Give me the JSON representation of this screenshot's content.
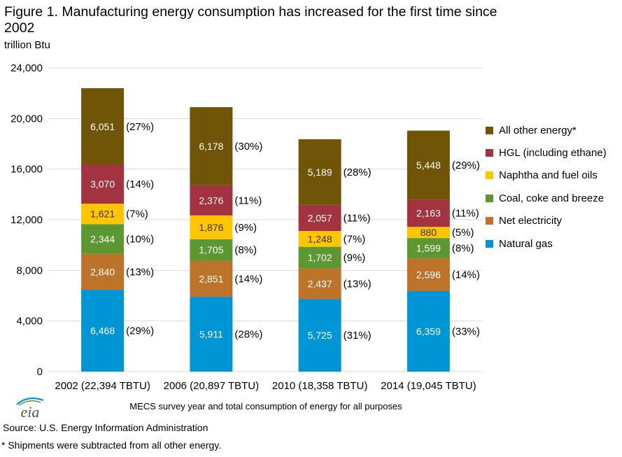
{
  "header": {
    "title": "Figure 1. Manufacturing energy consumption has increased for the first time since 2002",
    "unit": "trillion Btu"
  },
  "footer": {
    "source": "Source: U.S. Energy Information Administration",
    "note": "* Shipments were subtracted from all other energy.",
    "logo_text": "eia"
  },
  "chart_data": {
    "type": "bar",
    "stacked": true,
    "title": "Figure 1. Manufacturing energy consumption has increased for the first time since 2002",
    "ylabel": "trillion Btu",
    "xlabel": "MECS survey year and total consumption of energy for all purposes",
    "ylim": [
      0,
      24000
    ],
    "yticks": [
      0,
      4000,
      8000,
      12000,
      16000,
      20000,
      24000
    ],
    "ytick_labels": [
      "0",
      "4,000",
      "8,000",
      "12,000",
      "16,000",
      "20,000",
      "24,000"
    ],
    "grid": true,
    "legend_position": "right",
    "categories": [
      "2002 (22,394 TBTU)",
      "2006 (20,897 TBTU)",
      "2010 (18,358 TBTU)",
      "2014 (19,045 TBTU)"
    ],
    "series": [
      {
        "name": "Natural gas",
        "color": "#0096d6",
        "value_label_color": "#ffffff",
        "values": [
          6468,
          5911,
          5725,
          6359
        ],
        "labels": [
          "6,468",
          "5,911",
          "5,725",
          "6,359"
        ],
        "shares": [
          "(29%)",
          "(28%)",
          "(31%)",
          "(33%)"
        ]
      },
      {
        "name": "Net electricity",
        "color": "#bd732a",
        "value_label_color": "#ffffff",
        "values": [
          2840,
          2851,
          2437,
          2596
        ],
        "labels": [
          "2,840",
          "2,851",
          "2,437",
          "2,596"
        ],
        "shares": [
          "(13%)",
          "(14%)",
          "(13%)",
          "(14%)"
        ]
      },
      {
        "name": "Coal, coke and breeze",
        "color": "#5d9732",
        "value_label_color": "#ffffff",
        "values": [
          2344,
          1705,
          1702,
          1599
        ],
        "labels": [
          "2,344",
          "1,705",
          "1,702",
          "1,599"
        ],
        "shares": [
          "(10%)",
          "(8%)",
          "(9%)",
          "(8%)"
        ]
      },
      {
        "name": "Naphtha and fuel oils",
        "color": "#ffc600",
        "value_label_color": "#333333",
        "values": [
          1621,
          1876,
          1248,
          880
        ],
        "labels": [
          "1,621",
          "1,876",
          "1,248",
          "880"
        ],
        "shares": [
          "(7%)",
          "(9%)",
          "(7%)",
          "(5%)"
        ]
      },
      {
        "name": "HGL (including ethane)",
        "color": "#a33340",
        "value_label_color": "#ffffff",
        "values": [
          3070,
          2376,
          2057,
          2163
        ],
        "labels": [
          "3,070",
          "2,376",
          "2,057",
          "2,163"
        ],
        "shares": [
          "(14%)",
          "(11%)",
          "(11%)",
          "(11%)"
        ]
      },
      {
        "name": "All other energy*",
        "color": "#705407",
        "value_label_color": "#ffffff",
        "values": [
          6051,
          6178,
          5189,
          5448
        ],
        "labels": [
          "6,051",
          "6,178",
          "5,189",
          "5,448"
        ],
        "shares": [
          "(27%)",
          "(30%)",
          "(28%)",
          "(29%)"
        ]
      }
    ]
  }
}
